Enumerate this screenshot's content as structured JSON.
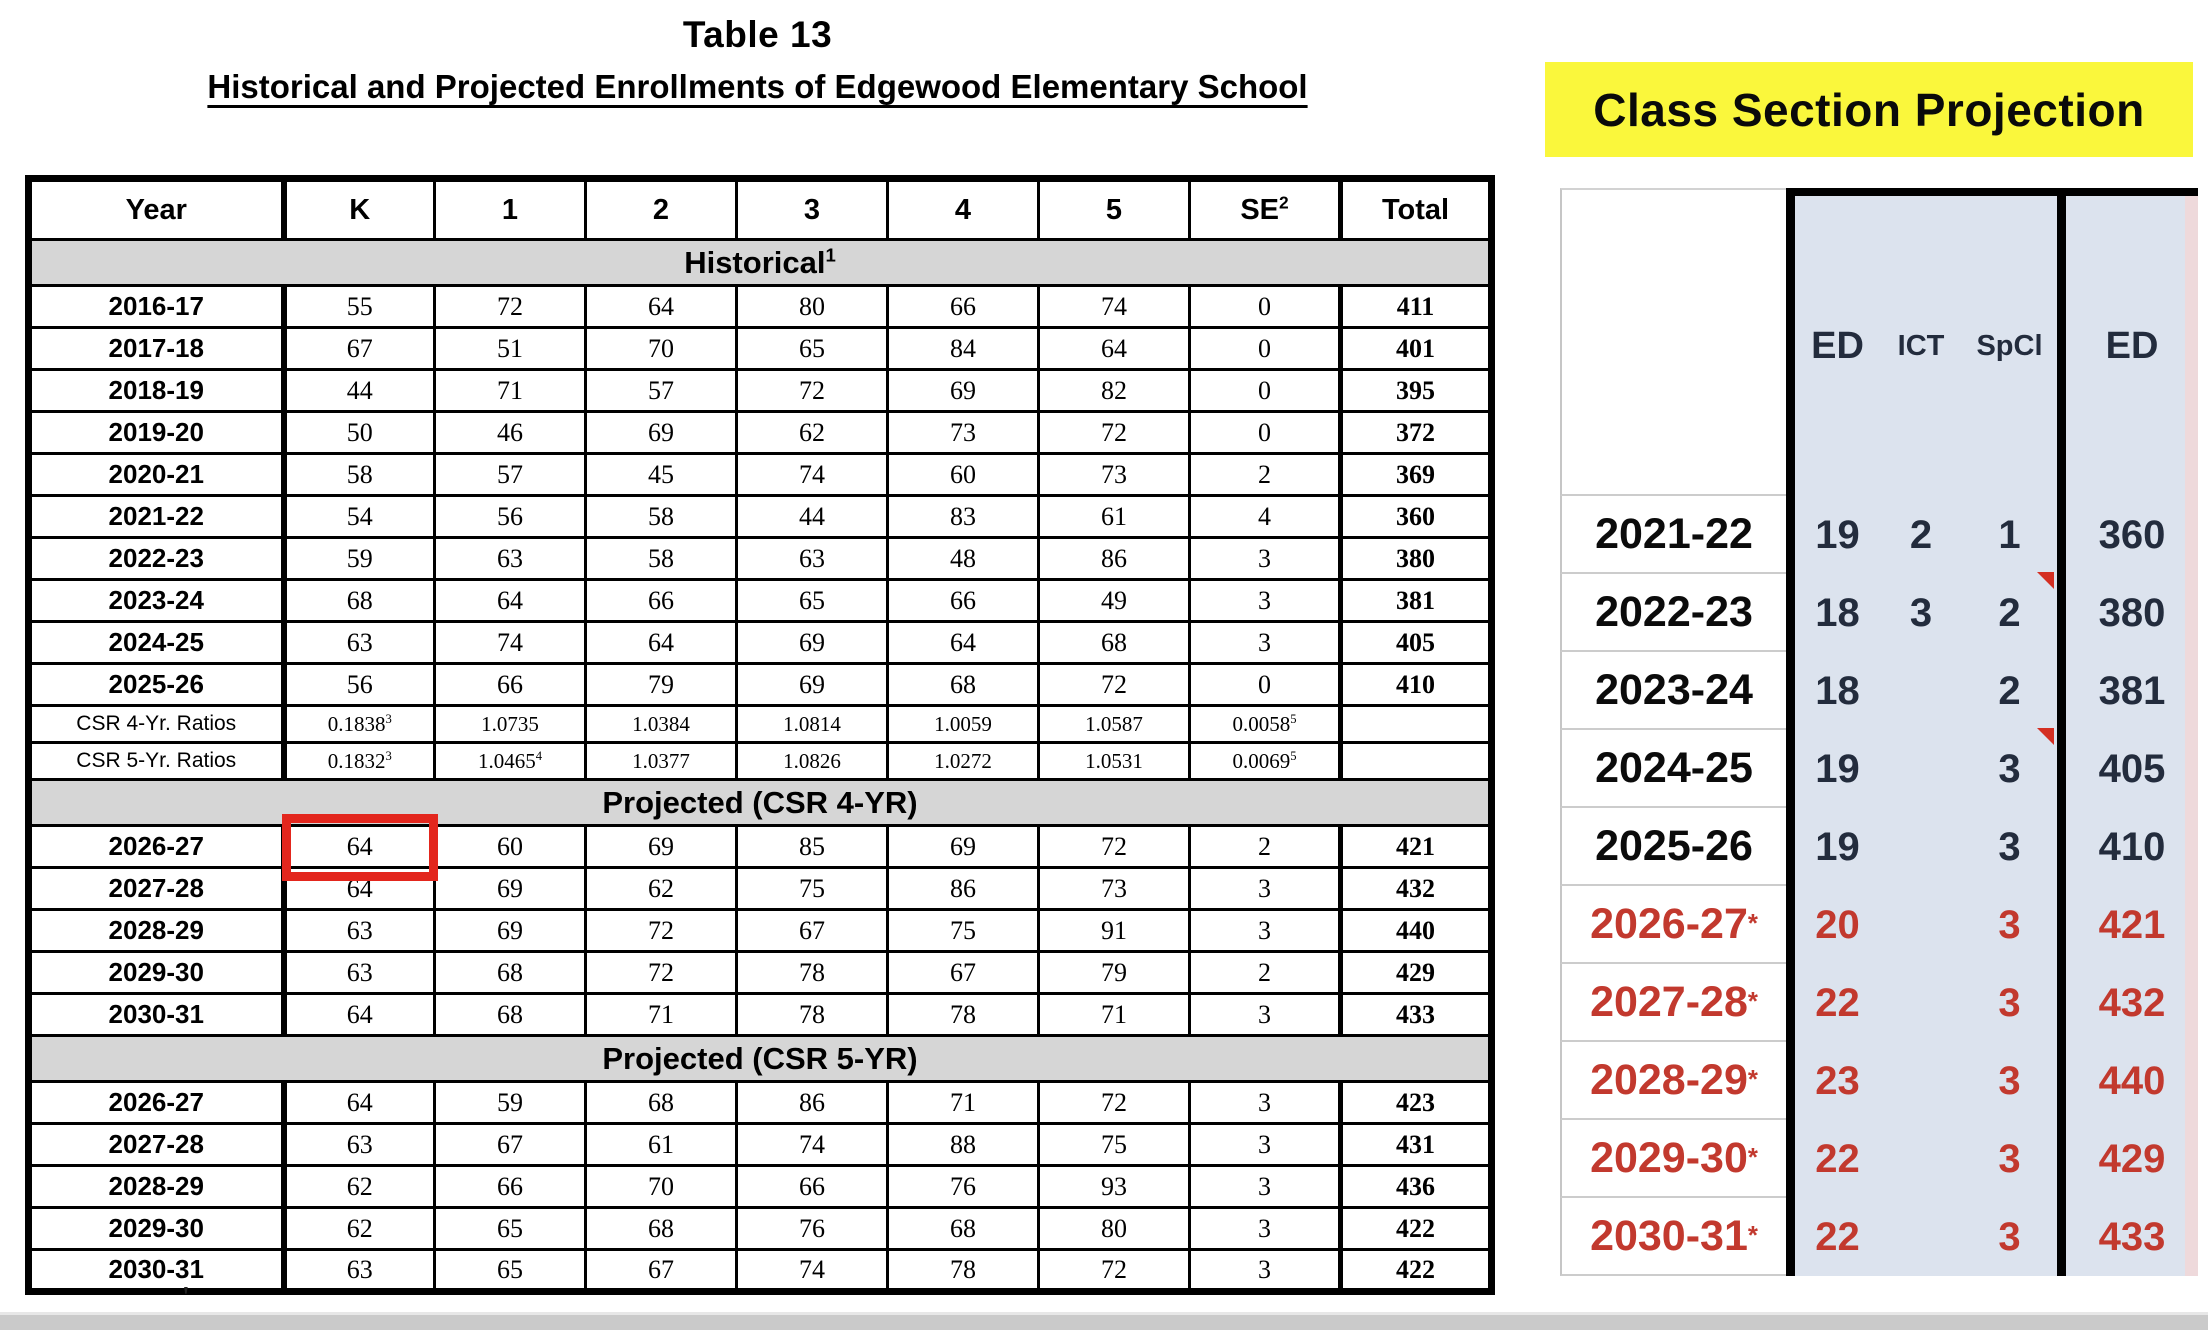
{
  "page": {
    "title": "Table 13",
    "subtitle": "Historical and Projected Enrollments of Edgewood Elementary School"
  },
  "colors": {
    "accent_yellow": "#faf73c",
    "section_band_gray": "#d6d6d6",
    "blue_column": "#dce3ee",
    "pink_edge": "#eed9db",
    "red_text": "#c2392e",
    "red_highlight_box": "#e3261d",
    "comment_marker_red": "#d42f22",
    "scrollbar_gray": "#cacaca"
  },
  "enrollment_table": {
    "columns": [
      "Year",
      "K",
      "1",
      "2",
      "3",
      "4",
      "5",
      "SE^2",
      "Total"
    ],
    "rows": [
      {
        "type": "band",
        "label": "Historical^1"
      },
      {
        "type": "data",
        "cells": [
          "2016-17",
          "55",
          "72",
          "64",
          "80",
          "66",
          "74",
          "0",
          "411"
        ]
      },
      {
        "type": "data",
        "cells": [
          "2017-18",
          "67",
          "51",
          "70",
          "65",
          "84",
          "64",
          "0",
          "401"
        ]
      },
      {
        "type": "data",
        "cells": [
          "2018-19",
          "44",
          "71",
          "57",
          "72",
          "69",
          "82",
          "0",
          "395"
        ]
      },
      {
        "type": "data",
        "cells": [
          "2019-20",
          "50",
          "46",
          "69",
          "62",
          "73",
          "72",
          "0",
          "372"
        ]
      },
      {
        "type": "data",
        "cells": [
          "2020-21",
          "58",
          "57",
          "45",
          "74",
          "60",
          "73",
          "2",
          "369"
        ]
      },
      {
        "type": "data",
        "cells": [
          "2021-22",
          "54",
          "56",
          "58",
          "44",
          "83",
          "61",
          "4",
          "360"
        ]
      },
      {
        "type": "data",
        "cells": [
          "2022-23",
          "59",
          "63",
          "58",
          "63",
          "48",
          "86",
          "3",
          "380"
        ]
      },
      {
        "type": "data",
        "cells": [
          "2023-24",
          "68",
          "64",
          "66",
          "65",
          "66",
          "49",
          "3",
          "381"
        ]
      },
      {
        "type": "data",
        "cells": [
          "2024-25",
          "63",
          "74",
          "64",
          "69",
          "64",
          "68",
          "3",
          "405"
        ]
      },
      {
        "type": "data",
        "cells": [
          "2025-26",
          "56",
          "66",
          "79",
          "69",
          "68",
          "72",
          "0",
          "410"
        ]
      },
      {
        "type": "ratio",
        "cells": [
          "CSR 4-Yr. Ratios",
          "0.1838^3",
          "1.0735",
          "1.0384",
          "1.0814",
          "1.0059",
          "1.0587",
          "0.0058^5",
          ""
        ]
      },
      {
        "type": "ratio",
        "cells": [
          "CSR 5-Yr. Ratios",
          "0.1832^3",
          "1.0465^4",
          "1.0377",
          "1.0826",
          "1.0272",
          "1.0531",
          "0.0069^5",
          ""
        ]
      },
      {
        "type": "band",
        "label": "Projected (CSR 4-YR)"
      },
      {
        "type": "data",
        "highlight_col": 1,
        "cells": [
          "2026-27",
          "64",
          "60",
          "69",
          "85",
          "69",
          "72",
          "2",
          "421"
        ]
      },
      {
        "type": "data",
        "cells": [
          "2027-28",
          "64",
          "69",
          "62",
          "75",
          "86",
          "73",
          "3",
          "432"
        ]
      },
      {
        "type": "data",
        "cells": [
          "2028-29",
          "63",
          "69",
          "72",
          "67",
          "75",
          "91",
          "3",
          "440"
        ]
      },
      {
        "type": "data",
        "cells": [
          "2029-30",
          "63",
          "68",
          "72",
          "78",
          "67",
          "79",
          "2",
          "429"
        ]
      },
      {
        "type": "data",
        "cells": [
          "2030-31",
          "64",
          "68",
          "71",
          "78",
          "78",
          "71",
          "3",
          "433"
        ]
      },
      {
        "type": "band",
        "label": "Projected (CSR 5-YR)"
      },
      {
        "type": "data",
        "cells": [
          "2026-27",
          "64",
          "59",
          "68",
          "86",
          "71",
          "72",
          "3",
          "423"
        ]
      },
      {
        "type": "data",
        "cells": [
          "2027-28",
          "63",
          "67",
          "61",
          "74",
          "88",
          "75",
          "3",
          "431"
        ]
      },
      {
        "type": "data",
        "cells": [
          "2028-29",
          "62",
          "66",
          "70",
          "66",
          "76",
          "93",
          "3",
          "436"
        ]
      },
      {
        "type": "data",
        "cells": [
          "2029-30",
          "62",
          "65",
          "68",
          "76",
          "68",
          "80",
          "3",
          "422"
        ]
      },
      {
        "type": "data",
        "cells": [
          "2030-31",
          "63",
          "65",
          "67",
          "74",
          "78",
          "72",
          "3",
          "422"
        ]
      }
    ]
  },
  "class_section_table": {
    "title": "Class Section Projection",
    "headers": {
      "ed": "ED",
      "ict": "ICT",
      "spcl": "SpCl",
      "ed_total": "ED"
    },
    "rows": [
      {
        "year": "2021-22",
        "ed": "19",
        "ict": "2",
        "spcl": "1",
        "total": "360",
        "red": false,
        "marker": false
      },
      {
        "year": "2022-23",
        "ed": "18",
        "ict": "3",
        "spcl": "2",
        "total": "380",
        "red": false,
        "marker": true
      },
      {
        "year": "2023-24",
        "ed": "18",
        "ict": "",
        "spcl": "2",
        "total": "381",
        "red": false,
        "marker": false
      },
      {
        "year": "2024-25",
        "ed": "19",
        "ict": "",
        "spcl": "3",
        "total": "405",
        "red": false,
        "marker": true
      },
      {
        "year": "2025-26",
        "ed": "19",
        "ict": "",
        "spcl": "3",
        "total": "410",
        "red": false,
        "marker": false
      },
      {
        "year": "2026-27^*",
        "ed": "20",
        "ict": "",
        "spcl": "3",
        "total": "421",
        "red": true,
        "marker": false
      },
      {
        "year": "2027-28^*",
        "ed": "22",
        "ict": "",
        "spcl": "3",
        "total": "432",
        "red": true,
        "marker": false
      },
      {
        "year": "2028-29^*",
        "ed": "23",
        "ict": "",
        "spcl": "3",
        "total": "440",
        "red": true,
        "marker": false
      },
      {
        "year": "2029-30^*",
        "ed": "22",
        "ict": "",
        "spcl": "3",
        "total": "429",
        "red": true,
        "marker": false
      },
      {
        "year": "2030-31^*",
        "ed": "22",
        "ict": "",
        "spcl": "3",
        "total": "433",
        "red": true,
        "marker": false
      }
    ]
  },
  "footnote_mark": "'"
}
